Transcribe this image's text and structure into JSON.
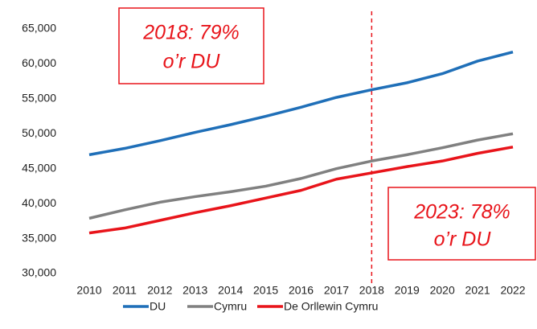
{
  "chart_data": {
    "type": "line",
    "categories": [
      "2010",
      "2011",
      "2012",
      "2013",
      "2014",
      "2015",
      "2016",
      "2017",
      "2018",
      "2019",
      "2020",
      "2021",
      "2022"
    ],
    "series": [
      {
        "name": "DU",
        "color": "#1f6fb8",
        "values": [
          47000,
          47900,
          49000,
          50200,
          51300,
          52500,
          53800,
          55200,
          56300,
          57300,
          58600,
          60400,
          61700
        ]
      },
      {
        "name": "Cymru",
        "color": "#808080",
        "values": [
          37900,
          39100,
          40200,
          41000,
          41700,
          42500,
          43600,
          45000,
          46100,
          47000,
          48000,
          49100,
          50000
        ]
      },
      {
        "name": "De Orllewin Cymru",
        "color": "#e8141a",
        "values": [
          35800,
          36500,
          37600,
          38700,
          39700,
          40800,
          41900,
          43500,
          44400,
          45300,
          46100,
          47200,
          48100
        ]
      }
    ],
    "ylim": [
      30000,
      65000
    ],
    "yticks": [
      {
        "value": 30000,
        "label": "30,000"
      },
      {
        "value": 35000,
        "label": "35,000"
      },
      {
        "value": 40000,
        "label": "40,000"
      },
      {
        "value": 45000,
        "label": "45,000"
      },
      {
        "value": 50000,
        "label": "50,000"
      },
      {
        "value": 55000,
        "label": "55,000"
      },
      {
        "value": 60000,
        "label": "60,000"
      },
      {
        "value": 65000,
        "label": "65,000"
      }
    ],
    "grid": false,
    "legend": "bottom",
    "vline": "2018",
    "annotations": [
      {
        "lines": [
          "2018: 79%",
          "o’r DU"
        ],
        "color": "#e8141a"
      },
      {
        "lines": [
          "2023: 78%",
          "o’r DU"
        ],
        "color": "#e8141a"
      }
    ]
  }
}
